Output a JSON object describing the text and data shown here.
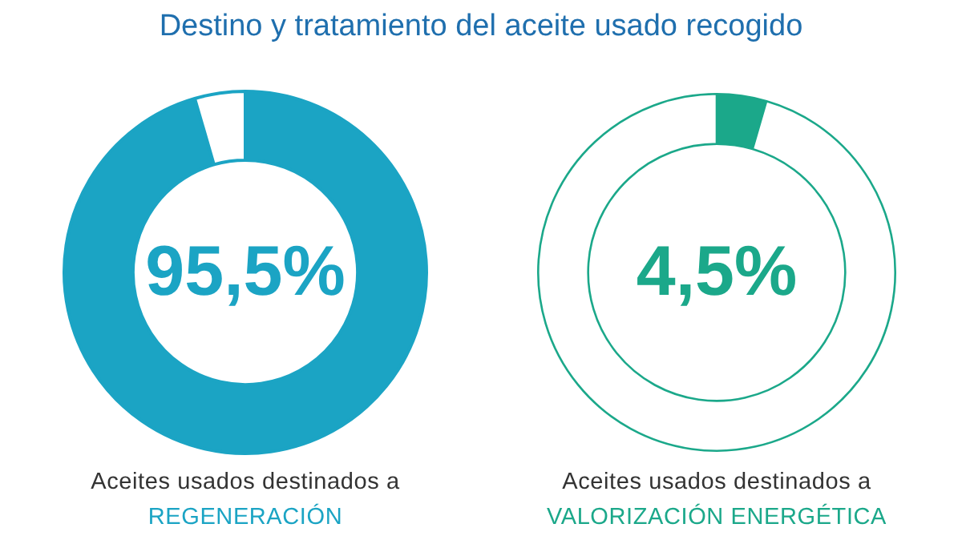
{
  "chart_data": [
    {
      "type": "donut",
      "title": "Destino y tratamiento del aceite usado recogido",
      "categories": [
        null,
        null
      ],
      "values": [
        95.5,
        4.5
      ],
      "colors": [
        "#1ba4c4",
        "#ffffff"
      ],
      "value_labels": [
        "95,5%",
        null
      ],
      "legend": false,
      "annotations": [
        "Aceites usados destinados a",
        "REGENERACIÓN"
      ]
    },
    {
      "type": "donut",
      "categories": [
        null,
        null
      ],
      "values": [
        4.5,
        95.5
      ],
      "colors": [
        "#1ba88a",
        "#ffffff"
      ],
      "value_labels": [
        "4,5%",
        null
      ],
      "legend": false,
      "annotations": [
        "Aceites usados destinados a",
        "VALORIZACIÓN ENERGÉTICA"
      ]
    }
  ]
}
